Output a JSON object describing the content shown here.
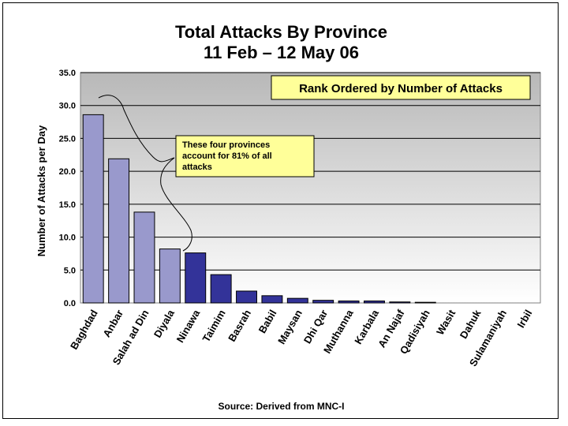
{
  "title_line1": "Total Attacks By Province",
  "title_line2": "11 Feb – 12 May 06",
  "source": "Source:  Derived from MNC-I",
  "rank_box": "Rank Ordered by Number of Attacks",
  "callout": [
    "These four provinces",
    "account for 81% of all",
    "attacks"
  ],
  "colors": {
    "highlight_bar": "#9999CC",
    "other_bar": "#333399",
    "callout_bg": "#FFFF99"
  },
  "chart_data": {
    "type": "bar",
    "title": "Total Attacks By Province 11 Feb – 12 May 06",
    "ylabel": "Number of Attacks per Day",
    "xlabel": "",
    "ylim": [
      0,
      35
    ],
    "yticks": [
      "0.0",
      "5.0",
      "10.0",
      "15.0",
      "20.0",
      "25.0",
      "30.0",
      "35.0"
    ],
    "grid": true,
    "categories": [
      "Baghdad",
      "Anbar",
      "Salah ad Din",
      "Diyala",
      "Ninawa",
      "Taimim",
      "Basrah",
      "Babil",
      "Maysan",
      "Dhi Qar",
      "Muthanna",
      "Karbala",
      "An Najaf",
      "Qadisiyah",
      "Wasit",
      "Dahuk",
      "Sulamaniyah",
      "Irbil"
    ],
    "values": [
      28.6,
      21.9,
      13.8,
      8.2,
      7.6,
      4.3,
      1.8,
      1.1,
      0.7,
      0.4,
      0.3,
      0.3,
      0.15,
      0.1,
      0,
      0,
      0,
      0
    ],
    "highlighted_count": 4
  }
}
